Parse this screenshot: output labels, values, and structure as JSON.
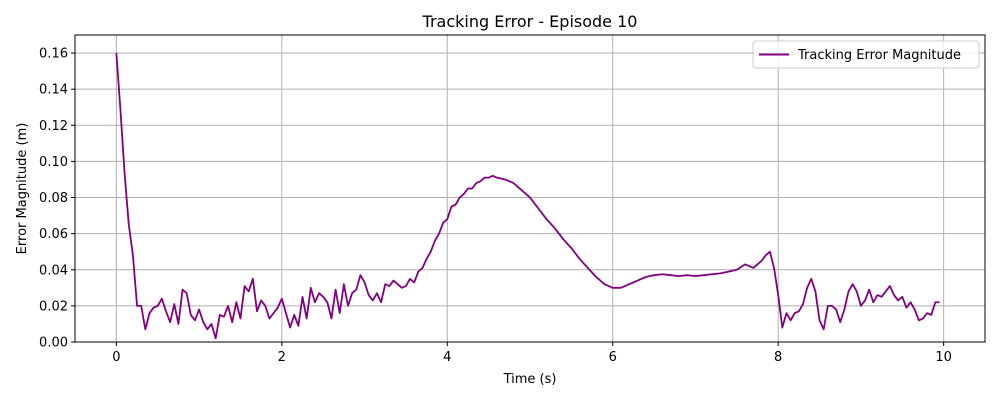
{
  "chart_data": {
    "type": "line",
    "title": "Tracking Error - Episode 10",
    "xlabel": "Time (s)",
    "ylabel": "Error Magnitude (m)",
    "xlim": [
      -0.5,
      10.5
    ],
    "ylim": [
      0,
      0.17
    ],
    "xticks": [
      0,
      2,
      4,
      6,
      8,
      10
    ],
    "xtick_labels": [
      "0",
      "2",
      "4",
      "6",
      "8",
      "10"
    ],
    "yticks": [
      0.0,
      0.02,
      0.04,
      0.06,
      0.08,
      0.1,
      0.12,
      0.14,
      0.16
    ],
    "ytick_labels": [
      "0.00",
      "0.02",
      "0.04",
      "0.06",
      "0.08",
      "0.10",
      "0.12",
      "0.14",
      "0.16"
    ],
    "grid": true,
    "legend_position": "top-right",
    "series": [
      {
        "name": "Tracking Error Magnitude",
        "color": "#800080",
        "x": [
          0,
          0.05,
          0.1,
          0.15,
          0.2,
          0.25,
          0.3,
          0.35,
          0.4,
          0.45,
          0.5,
          0.55,
          0.6,
          0.65,
          0.7,
          0.75,
          0.8,
          0.85,
          0.9,
          0.95,
          1.0,
          1.05,
          1.1,
          1.15,
          1.2,
          1.25,
          1.3,
          1.35,
          1.4,
          1.45,
          1.5,
          1.55,
          1.6,
          1.65,
          1.7,
          1.75,
          1.8,
          1.85,
          1.9,
          1.95,
          2.0,
          2.05,
          2.1,
          2.15,
          2.2,
          2.25,
          2.3,
          2.35,
          2.4,
          2.45,
          2.5,
          2.55,
          2.6,
          2.65,
          2.7,
          2.75,
          2.8,
          2.85,
          2.9,
          2.95,
          3.0,
          3.05,
          3.1,
          3.15,
          3.2,
          3.25,
          3.3,
          3.35,
          3.4,
          3.45,
          3.5,
          3.55,
          3.6,
          3.65,
          3.7,
          3.75,
          3.8,
          3.85,
          3.9,
          3.95,
          4.0,
          4.05,
          4.1,
          4.15,
          4.2,
          4.25,
          4.3,
          4.35,
          4.4,
          4.45,
          4.5,
          4.55,
          4.6,
          4.7,
          4.8,
          4.9,
          5.0,
          5.1,
          5.2,
          5.3,
          5.4,
          5.5,
          5.6,
          5.7,
          5.8,
          5.9,
          6.0,
          6.1,
          6.2,
          6.3,
          6.4,
          6.5,
          6.6,
          6.7,
          6.8,
          6.9,
          7.0,
          7.1,
          7.2,
          7.3,
          7.4,
          7.5,
          7.6,
          7.7,
          7.8,
          7.85,
          7.9,
          7.95,
          8.0,
          8.05,
          8.1,
          8.15,
          8.2,
          8.25,
          8.3,
          8.35,
          8.4,
          8.45,
          8.5,
          8.55,
          8.6,
          8.65,
          8.7,
          8.75,
          8.8,
          8.85,
          8.9,
          8.95,
          9.0,
          9.05,
          9.1,
          9.15,
          9.2,
          9.25,
          9.3,
          9.35,
          9.4,
          9.45,
          9.5,
          9.55,
          9.6,
          9.65,
          9.7,
          9.75,
          9.8,
          9.85,
          9.9,
          9.95
        ],
        "y": [
          0.16,
          0.128,
          0.093,
          0.065,
          0.048,
          0.02,
          0.02,
          0.007,
          0.016,
          0.019,
          0.02,
          0.024,
          0.017,
          0.011,
          0.021,
          0.01,
          0.029,
          0.027,
          0.015,
          0.012,
          0.018,
          0.011,
          0.007,
          0.01,
          0.002,
          0.015,
          0.014,
          0.02,
          0.011,
          0.022,
          0.013,
          0.031,
          0.028,
          0.035,
          0.017,
          0.023,
          0.02,
          0.013,
          0.016,
          0.019,
          0.024,
          0.016,
          0.008,
          0.015,
          0.009,
          0.025,
          0.013,
          0.03,
          0.022,
          0.027,
          0.025,
          0.022,
          0.013,
          0.029,
          0.016,
          0.032,
          0.02,
          0.027,
          0.029,
          0.037,
          0.033,
          0.026,
          0.023,
          0.027,
          0.022,
          0.032,
          0.031,
          0.034,
          0.032,
          0.03,
          0.031,
          0.035,
          0.033,
          0.039,
          0.041,
          0.046,
          0.05,
          0.056,
          0.06,
          0.066,
          0.068,
          0.075,
          0.076,
          0.08,
          0.082,
          0.085,
          0.085,
          0.088,
          0.089,
          0.091,
          0.091,
          0.092,
          0.091,
          0.09,
          0.088,
          0.084,
          0.08,
          0.074,
          0.068,
          0.063,
          0.057,
          0.052,
          0.046,
          0.041,
          0.036,
          0.032,
          0.03,
          0.03,
          0.032,
          0.034,
          0.036,
          0.037,
          0.0375,
          0.037,
          0.0365,
          0.037,
          0.0365,
          0.037,
          0.0375,
          0.038,
          0.039,
          0.04,
          0.043,
          0.041,
          0.045,
          0.048,
          0.05,
          0.041,
          0.026,
          0.008,
          0.016,
          0.012,
          0.016,
          0.017,
          0.021,
          0.03,
          0.035,
          0.028,
          0.012,
          0.007,
          0.02,
          0.02,
          0.018,
          0.011,
          0.018,
          0.028,
          0.032,
          0.028,
          0.02,
          0.023,
          0.029,
          0.022,
          0.026,
          0.025,
          0.028,
          0.031,
          0.026,
          0.023,
          0.025,
          0.019,
          0.022,
          0.018,
          0.012,
          0.013,
          0.016,
          0.015,
          0.022,
          0.022
        ]
      }
    ]
  }
}
